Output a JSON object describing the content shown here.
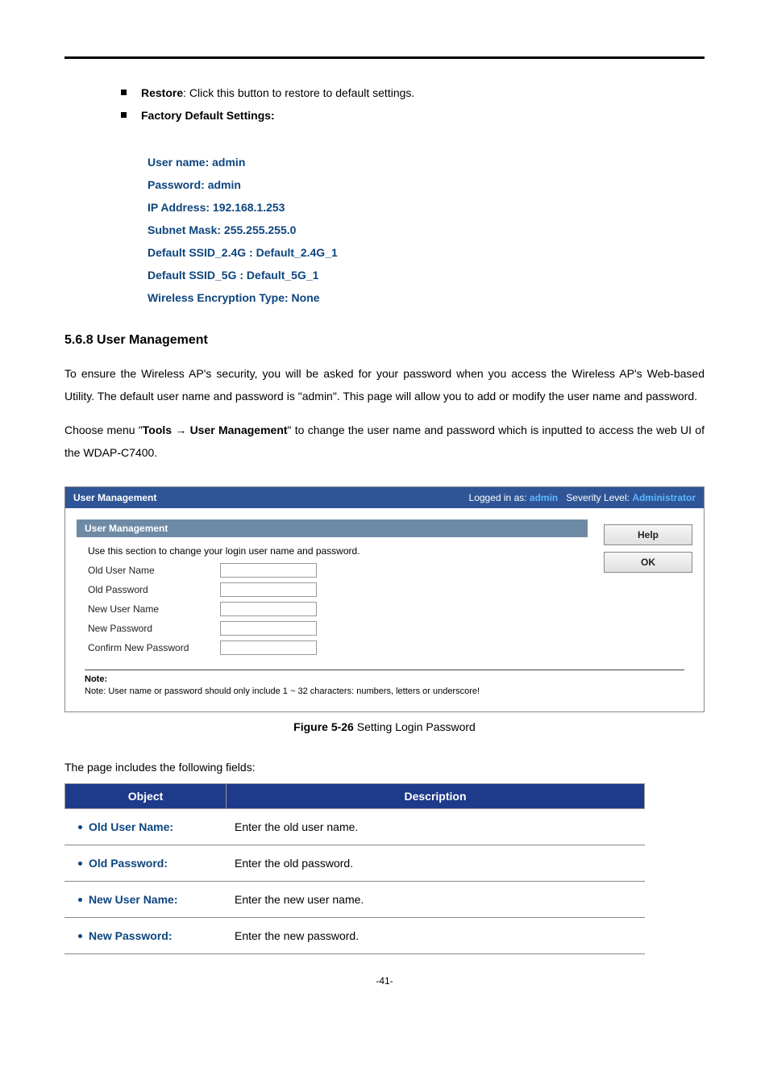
{
  "restore_label": "Restore",
  "restore_text": ": Click this button to restore to default settings.",
  "factory_label": "Factory Default Settings:",
  "defaults": {
    "user_name": "User name: admin",
    "password": "Password: admin",
    "ip": "IP Address: 192.168.1.253",
    "subnet": "Subnet Mask: 255.255.255.0",
    "ssid24": "Default SSID_2.4G : Default_2.4G_1",
    "ssid5": "Default SSID_5G : Default_5G_1",
    "enc": "Wireless Encryption Type: None"
  },
  "section_heading": "5.6.8  User Management",
  "para1": "To ensure the Wireless AP's security, you will be asked for your password when you access the Wireless AP's Web-based Utility. The default user name and password is \"admin\". This page will allow you to add or modify the user name and password.",
  "para2_pre": "Choose menu \"",
  "para2_bold": "Tools → User Management",
  "para2_post": "\" to change the user name and password which is inputted to access the web UI of the WDAP-C7400.",
  "screenshot": {
    "header_title": "User Management",
    "logged_in_label": "Logged in as:",
    "logged_in_user": "admin",
    "severity_label": "Severity Level:",
    "severity_value": "Administrator",
    "panel_title": "User Management",
    "panel_desc": "Use this section to change your login user name and password.",
    "fields": {
      "old_user": "Old User Name",
      "old_pass": "Old Password",
      "new_user": "New User Name",
      "new_pass": "New Password",
      "confirm": "Confirm New Password"
    },
    "help_btn": "Help",
    "ok_btn": "OK",
    "note_label": "Note:",
    "note_text": "Note: User name or password should only include 1 ~ 32 characters: numbers, letters or underscore!"
  },
  "figure_caption_bold": "Figure 5-26",
  "figure_caption_rest": " Setting Login Password",
  "fields_intro": "The page includes the following fields:",
  "table": {
    "header_obj": "Object",
    "header_desc": "Description",
    "rows": [
      {
        "obj": "Old User Name:",
        "desc": "Enter the old user name."
      },
      {
        "obj": "Old Password:",
        "desc": "Enter the old password."
      },
      {
        "obj": "New User Name:",
        "desc": "Enter the new user name."
      },
      {
        "obj": "New Password:",
        "desc": "Enter the new password."
      }
    ]
  },
  "page_number": "-41-",
  "colors": {
    "accent_blue": "#0d457f",
    "header_blue": "#2f5596",
    "panel_gray": "#6e8aa5",
    "table_head": "#1e3a8a",
    "link_blue": "#5db7ff"
  }
}
